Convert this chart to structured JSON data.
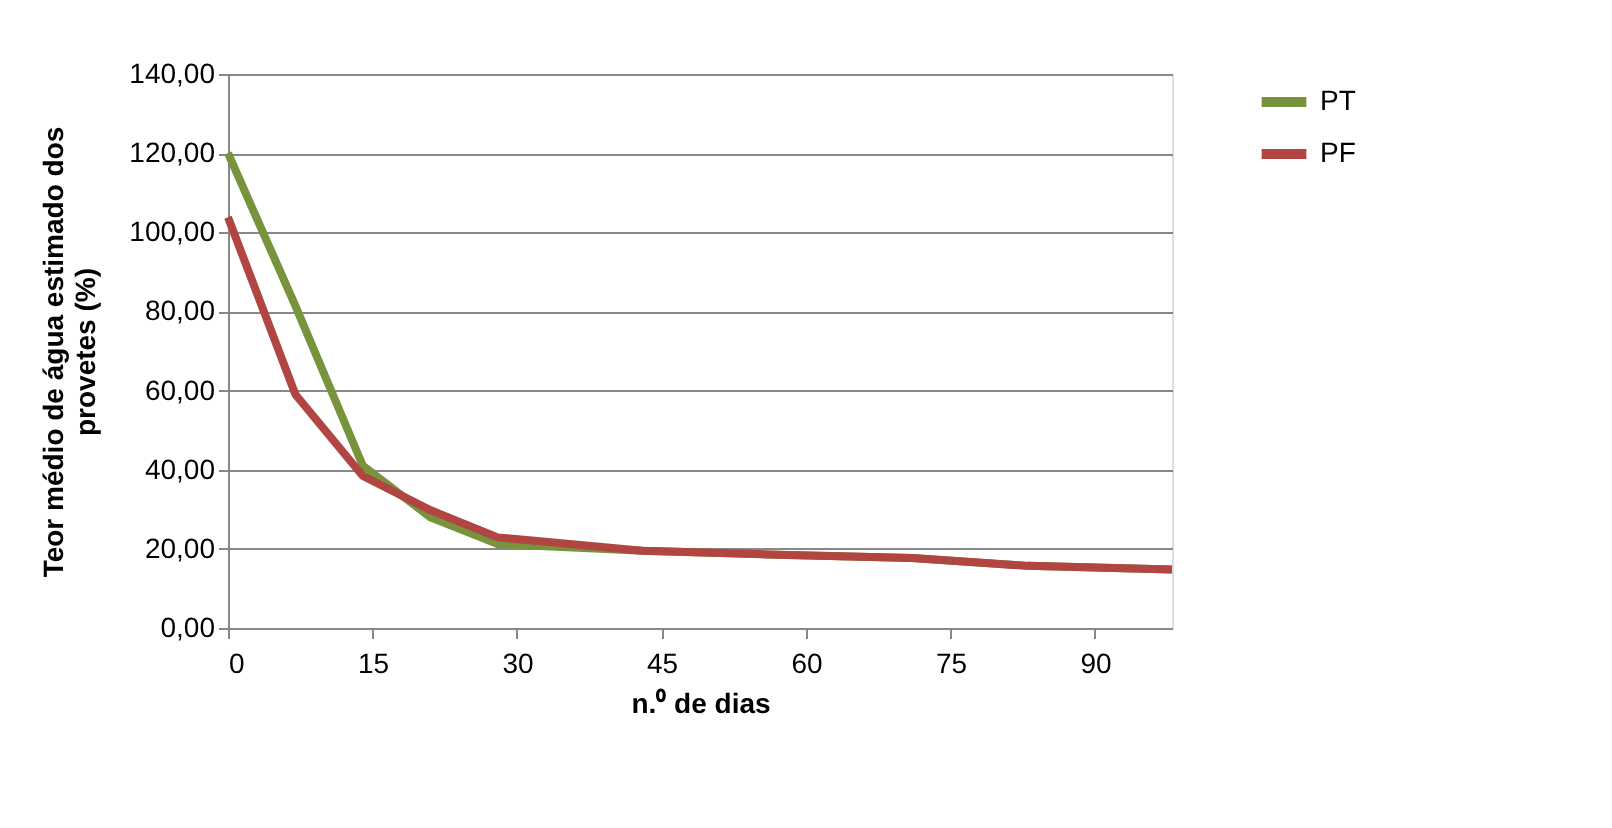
{
  "chart_data": {
    "type": "line",
    "xlabel": "n.⁰ de dias",
    "ylabel": "Teor médio de água estimado dos provetes (%)",
    "xlim": [
      0,
      98
    ],
    "xticks": [
      0,
      15,
      30,
      45,
      60,
      75,
      90
    ],
    "ylim": [
      0,
      140
    ],
    "yticks": [
      {
        "value": 0,
        "label": "0,00"
      },
      {
        "value": 20,
        "label": "20,00"
      },
      {
        "value": 40,
        "label": "40,00"
      },
      {
        "value": 60,
        "label": "60,00"
      },
      {
        "value": 80,
        "label": "80,00"
      },
      {
        "value": 100,
        "label": "100,00"
      },
      {
        "value": 120,
        "label": "120,00"
      },
      {
        "value": 140,
        "label": "140,00"
      }
    ],
    "grid": "y",
    "legend": "right",
    "marker": "none",
    "line_style": "solid",
    "series": [
      {
        "name": "PT",
        "color": "#77933c",
        "x": [
          0,
          7,
          14,
          21,
          28,
          43,
          56,
          71,
          83,
          98
        ],
        "values": [
          120,
          81.4,
          41,
          28,
          21.2,
          19.5,
          18.6,
          17.7,
          15.7,
          14.8
        ]
      },
      {
        "name": "PF",
        "color": "#b04542",
        "x": [
          0,
          7,
          14,
          21,
          28,
          43,
          56,
          71,
          83,
          98
        ],
        "values": [
          103.8,
          59,
          38.4,
          29.8,
          22.9,
          19.5,
          18.6,
          17.7,
          15.7,
          14.8
        ]
      }
    ]
  }
}
